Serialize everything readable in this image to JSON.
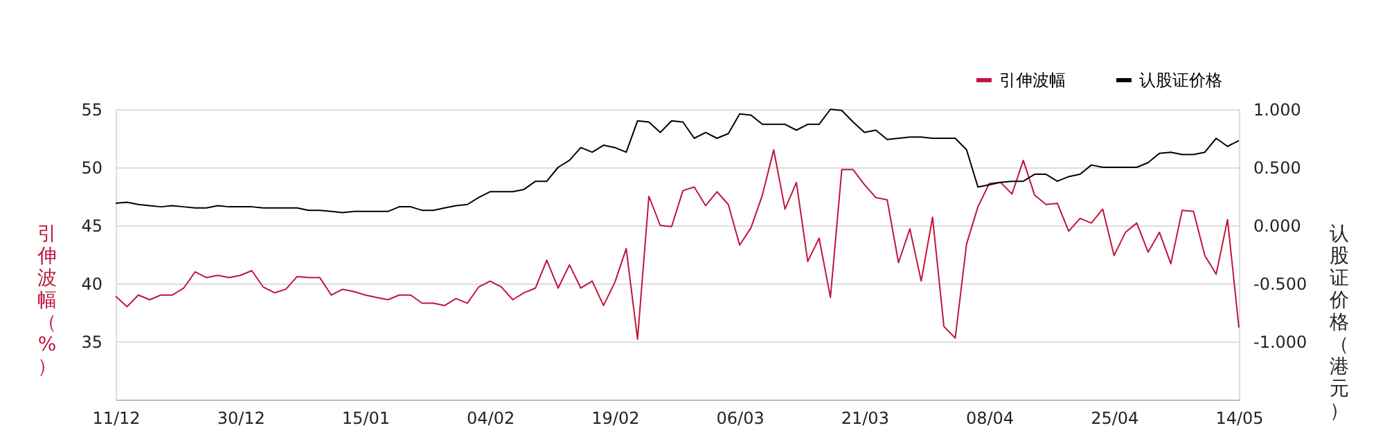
{
  "chart_data": {
    "type": "line",
    "categories": [
      "11/12",
      null,
      null,
      null,
      null,
      null,
      null,
      null,
      null,
      null,
      null,
      "30/12",
      null,
      null,
      null,
      null,
      null,
      null,
      null,
      null,
      null,
      null,
      "15/01",
      null,
      null,
      null,
      null,
      null,
      null,
      null,
      null,
      null,
      null,
      "04/02",
      null,
      null,
      null,
      null,
      null,
      null,
      null,
      null,
      null,
      null,
      "19/02",
      null,
      null,
      null,
      null,
      null,
      null,
      null,
      null,
      null,
      null,
      "06/03",
      null,
      null,
      null,
      null,
      null,
      null,
      null,
      null,
      null,
      null,
      "21/03",
      null,
      null,
      null,
      null,
      null,
      null,
      null,
      null,
      null,
      null,
      "08/04",
      null,
      null,
      null,
      null,
      null,
      null,
      null,
      null,
      null,
      null,
      "25/04",
      null,
      null,
      null,
      null,
      null,
      null,
      null,
      null,
      null,
      null,
      "14/05"
    ],
    "ylabel": "引伸波幅（%）",
    "y2label": "认股证价格（港元）",
    "series": [
      {
        "name": "引伸波幅",
        "color": "#c0143c",
        "values": [
          38.9,
          38.0,
          39.0,
          38.6,
          39.0,
          39.0,
          39.6,
          41.0,
          40.5,
          40.7,
          40.5,
          40.7,
          41.1,
          39.7,
          39.2,
          39.5,
          40.6,
          40.5,
          40.5,
          39.0,
          39.5,
          39.3,
          39.0,
          38.8,
          38.6,
          39.0,
          39.0,
          38.3,
          38.3,
          38.1,
          38.7,
          38.3,
          39.7,
          40.2,
          39.7,
          38.6,
          39.2,
          39.6,
          42.0,
          39.6,
          41.6,
          39.6,
          40.2,
          38.1,
          40.1,
          43.0,
          35.2,
          47.5,
          45.0,
          44.9,
          48.0,
          48.3,
          46.7,
          47.9,
          46.8,
          43.3,
          44.8,
          47.6,
          51.5,
          46.4,
          48.7,
          41.9,
          43.9,
          38.8,
          49.8,
          49.8,
          48.5,
          47.4,
          47.2,
          41.8,
          44.7,
          40.2,
          45.7,
          36.3,
          35.3,
          43.4,
          46.6,
          48.6,
          48.7,
          47.7,
          50.6,
          47.6,
          46.8,
          46.9,
          44.5,
          45.6,
          45.2,
          46.4,
          42.4,
          44.4,
          45.2,
          42.7,
          44.4,
          41.7,
          46.3,
          46.2,
          42.4,
          40.8,
          45.5,
          36.2
        ]
      },
      {
        "name": "认股证价格",
        "color": "#000000",
        "axis": "y2",
        "values": [
          0.19,
          0.2,
          0.18,
          0.17,
          0.16,
          0.17,
          0.16,
          0.15,
          0.15,
          0.17,
          0.16,
          0.16,
          0.16,
          0.15,
          0.15,
          0.15,
          0.15,
          0.13,
          0.13,
          0.12,
          0.11,
          0.12,
          0.12,
          0.12,
          0.12,
          0.16,
          0.16,
          0.13,
          0.13,
          0.15,
          0.17,
          0.18,
          0.24,
          0.29,
          0.29,
          0.29,
          0.31,
          0.38,
          0.38,
          0.5,
          0.56,
          0.67,
          0.63,
          0.69,
          0.67,
          0.63,
          0.9,
          0.89,
          0.8,
          0.9,
          0.89,
          0.75,
          0.8,
          0.75,
          0.79,
          0.96,
          0.95,
          0.87,
          0.87,
          0.87,
          0.82,
          0.87,
          0.87,
          1.0,
          0.99,
          0.89,
          0.8,
          0.82,
          0.74,
          0.75,
          0.76,
          0.76,
          0.75,
          0.75,
          0.75,
          0.65,
          0.33,
          0.35,
          0.37,
          0.38,
          0.38,
          0.44,
          0.44,
          0.38,
          0.42,
          0.44,
          0.52,
          0.5,
          0.5,
          0.5,
          0.5,
          0.54,
          0.62,
          0.63,
          0.61,
          0.61,
          0.63,
          0.75,
          0.68,
          0.73
        ]
      }
    ],
    "ylim": [
      30,
      55
    ],
    "yticks": [
      35,
      40,
      45,
      50,
      55
    ],
    "y2lim": [
      -1.5,
      1
    ],
    "y2ticks": [
      {
        "value": 1,
        "label": "1.000"
      },
      {
        "value": 0.5,
        "label": "0.500"
      },
      {
        "value": 0,
        "label": "0.000"
      },
      {
        "value": -0.5,
        "label": "-0.500"
      },
      {
        "value": -1,
        "label": "-1.000"
      }
    ],
    "grid": "y",
    "legend": "top right",
    "marker": "none",
    "line_style": "solid"
  }
}
